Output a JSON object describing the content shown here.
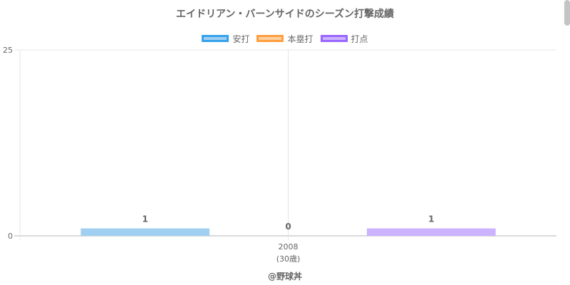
{
  "chart_data": {
    "type": "bar",
    "title": "エイドリアン・バーンサイドのシーズン打撃成績",
    "categories": [
      "2008"
    ],
    "category_sublabels": [
      "(30歳)"
    ],
    "series": [
      {
        "name": "安打",
        "values": [
          1
        ],
        "fill": "#a0cff2",
        "border": "#36a2eb"
      },
      {
        "name": "本塁打",
        "values": [
          0
        ],
        "fill": "#ffcf9f",
        "border": "#ff9f40"
      },
      {
        "name": "打点",
        "values": [
          1
        ],
        "fill": "#ccb3ff",
        "border": "#9966ff"
      }
    ],
    "ylim": [
      0,
      25
    ],
    "y_ticks": [
      "0",
      "25"
    ],
    "grid": true,
    "legend_position": "top"
  },
  "footer": {
    "text": "@野球丼"
  }
}
